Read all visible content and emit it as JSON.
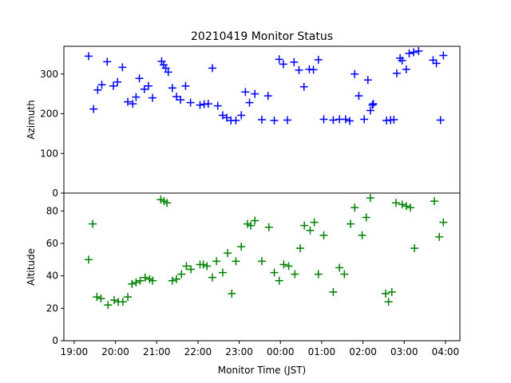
{
  "chart_data": {
    "type": "scatter",
    "title": "20210419 Monitor Status",
    "xlabel": "Monitor Time (JST)",
    "x_tick_labels": [
      "19:00",
      "20:00",
      "21:00",
      "22:00",
      "23:00",
      "00:00",
      "01:00",
      "02:00",
      "03:00",
      "04:00"
    ],
    "x_tick_hours": [
      19,
      20,
      21,
      22,
      23,
      24,
      25,
      26,
      27,
      28
    ],
    "xlim_hours": [
      18.75,
      28.35
    ],
    "panels": [
      {
        "name": "azimuth",
        "ylabel": "Azimuth",
        "ylim": [
          0,
          370
        ],
        "y_ticks": [
          0,
          100,
          200,
          300
        ],
        "marker_color": "#0000ff",
        "points": [
          [
            19.35,
            345
          ],
          [
            19.47,
            212
          ],
          [
            19.57,
            260
          ],
          [
            19.67,
            273
          ],
          [
            19.8,
            331
          ],
          [
            19.95,
            270
          ],
          [
            20.05,
            280
          ],
          [
            20.17,
            317
          ],
          [
            20.3,
            230
          ],
          [
            20.42,
            225
          ],
          [
            20.5,
            242
          ],
          [
            20.58,
            289
          ],
          [
            20.7,
            262
          ],
          [
            20.8,
            270
          ],
          [
            20.9,
            240
          ],
          [
            21.12,
            332
          ],
          [
            21.17,
            323
          ],
          [
            21.22,
            315
          ],
          [
            21.28,
            305
          ],
          [
            21.38,
            265
          ],
          [
            21.48,
            243
          ],
          [
            21.58,
            235
          ],
          [
            21.7,
            270
          ],
          [
            21.82,
            228
          ],
          [
            22.05,
            222
          ],
          [
            22.15,
            224
          ],
          [
            22.25,
            225
          ],
          [
            22.35,
            315
          ],
          [
            22.48,
            220
          ],
          [
            22.6,
            196
          ],
          [
            22.7,
            190
          ],
          [
            22.8,
            183
          ],
          [
            22.92,
            183
          ],
          [
            23.05,
            196
          ],
          [
            23.15,
            255
          ],
          [
            23.25,
            228
          ],
          [
            23.38,
            250
          ],
          [
            23.55,
            185
          ],
          [
            23.7,
            245
          ],
          [
            23.85,
            183
          ],
          [
            23.97,
            337
          ],
          [
            24.07,
            325
          ],
          [
            24.17,
            184
          ],
          [
            24.33,
            330
          ],
          [
            24.45,
            310
          ],
          [
            24.57,
            268
          ],
          [
            24.7,
            312
          ],
          [
            24.8,
            311
          ],
          [
            24.92,
            336
          ],
          [
            25.05,
            186
          ],
          [
            25.28,
            184
          ],
          [
            25.43,
            186
          ],
          [
            25.58,
            186
          ],
          [
            25.68,
            182
          ],
          [
            25.8,
            300
          ],
          [
            25.9,
            245
          ],
          [
            26.03,
            186
          ],
          [
            26.12,
            285
          ],
          [
            26.18,
            208
          ],
          [
            26.23,
            222
          ],
          [
            26.25,
            225
          ],
          [
            26.57,
            183
          ],
          [
            26.67,
            184
          ],
          [
            26.75,
            185
          ],
          [
            26.82,
            302
          ],
          [
            26.9,
            340
          ],
          [
            26.95,
            334
          ],
          [
            27.05,
            312
          ],
          [
            27.12,
            352
          ],
          [
            27.23,
            355
          ],
          [
            27.35,
            358
          ],
          [
            27.7,
            335
          ],
          [
            27.78,
            327
          ],
          [
            27.88,
            184
          ],
          [
            27.95,
            347
          ]
        ]
      },
      {
        "name": "altitude",
        "ylabel": "Altitude",
        "ylim": [
          0,
          91
        ],
        "y_ticks": [
          0,
          20,
          40,
          60,
          80
        ],
        "marker_color": "#008000",
        "points": [
          [
            19.35,
            50
          ],
          [
            19.45,
            72
          ],
          [
            19.55,
            27
          ],
          [
            19.65,
            26
          ],
          [
            19.82,
            22
          ],
          [
            19.97,
            25
          ],
          [
            20.07,
            24
          ],
          [
            20.18,
            24
          ],
          [
            20.3,
            27
          ],
          [
            20.4,
            35
          ],
          [
            20.5,
            36
          ],
          [
            20.6,
            37
          ],
          [
            20.72,
            39
          ],
          [
            20.83,
            38
          ],
          [
            20.9,
            37
          ],
          [
            21.1,
            87
          ],
          [
            21.18,
            86
          ],
          [
            21.25,
            85
          ],
          [
            21.38,
            37
          ],
          [
            21.48,
            38
          ],
          [
            21.6,
            41
          ],
          [
            21.72,
            46
          ],
          [
            21.83,
            44
          ],
          [
            22.05,
            47
          ],
          [
            22.13,
            47
          ],
          [
            22.22,
            46
          ],
          [
            22.35,
            39
          ],
          [
            22.45,
            49
          ],
          [
            22.6,
            42
          ],
          [
            22.72,
            54
          ],
          [
            22.82,
            29
          ],
          [
            22.92,
            49
          ],
          [
            23.05,
            58
          ],
          [
            23.2,
            72
          ],
          [
            23.28,
            71
          ],
          [
            23.38,
            74
          ],
          [
            23.55,
            49
          ],
          [
            23.72,
            70
          ],
          [
            23.85,
            42
          ],
          [
            23.97,
            37
          ],
          [
            24.08,
            47
          ],
          [
            24.2,
            46
          ],
          [
            24.35,
            41
          ],
          [
            24.48,
            57
          ],
          [
            24.58,
            71
          ],
          [
            24.72,
            68
          ],
          [
            24.82,
            73
          ],
          [
            24.92,
            41
          ],
          [
            25.05,
            65
          ],
          [
            25.28,
            30
          ],
          [
            25.43,
            45
          ],
          [
            25.55,
            41
          ],
          [
            25.7,
            72
          ],
          [
            25.8,
            82
          ],
          [
            25.98,
            65
          ],
          [
            26.08,
            76
          ],
          [
            26.18,
            88
          ],
          [
            26.55,
            29
          ],
          [
            26.62,
            24
          ],
          [
            26.7,
            30
          ],
          [
            26.8,
            85
          ],
          [
            26.95,
            84
          ],
          [
            27.05,
            83
          ],
          [
            27.15,
            82
          ],
          [
            27.25,
            57
          ],
          [
            27.73,
            86
          ],
          [
            27.85,
            64
          ],
          [
            27.95,
            73
          ]
        ]
      }
    ]
  }
}
